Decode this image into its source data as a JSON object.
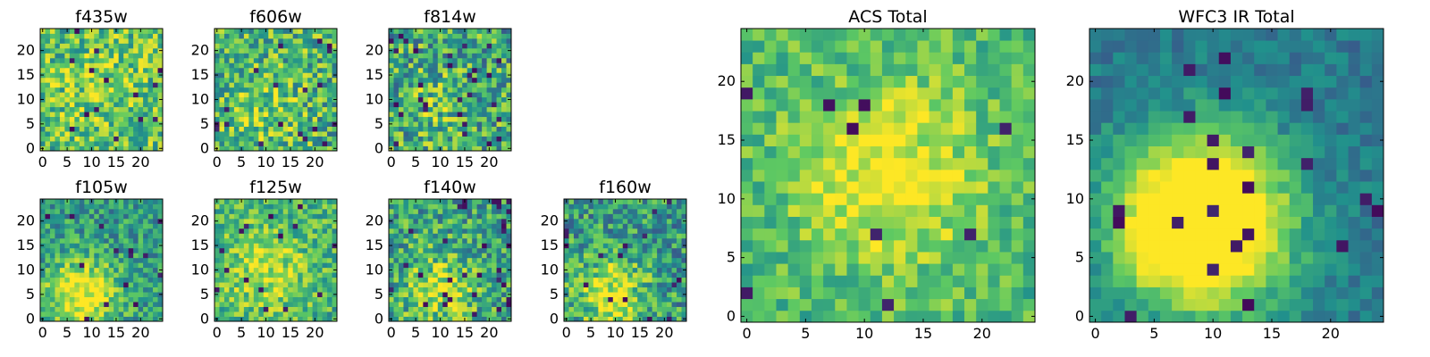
{
  "figure": {
    "colormap": [
      "#440154",
      "#3b528b",
      "#21918c",
      "#5ec962",
      "#fde725"
    ]
  },
  "chart_data": [
    {
      "type": "heatmap",
      "title": "f435w",
      "grid_size": [
        25,
        25
      ],
      "x_range": [
        0,
        24
      ],
      "y_range": [
        0,
        24
      ],
      "xticks": [
        0,
        5,
        10,
        15,
        20
      ],
      "yticks": [
        0,
        5,
        10,
        15,
        20
      ],
      "values": "25x25 noise field with a faint central brightening; values on a 0-1 colour scale",
      "xlabel": "",
      "ylabel": ""
    },
    {
      "type": "heatmap",
      "title": "f606w",
      "grid_size": [
        25,
        25
      ],
      "x_range": [
        0,
        24
      ],
      "y_range": [
        0,
        24
      ],
      "xticks": [
        0,
        5,
        10,
        15,
        20
      ],
      "yticks": [
        0,
        5,
        10,
        15,
        20
      ],
      "xlabel": "",
      "ylabel": ""
    },
    {
      "type": "heatmap",
      "title": "f814w",
      "grid_size": [
        25,
        25
      ],
      "x_range": [
        0,
        24
      ],
      "y_range": [
        0,
        24
      ],
      "xticks": [
        0,
        5,
        10,
        15,
        20
      ],
      "yticks": [
        0,
        5,
        10,
        15,
        20
      ],
      "xlabel": "",
      "ylabel": ""
    },
    {
      "type": "heatmap",
      "title": "f105w",
      "grid_size": [
        25,
        25
      ],
      "x_range": [
        0,
        24
      ],
      "y_range": [
        0,
        24
      ],
      "xticks": [
        0,
        5,
        10,
        15,
        20
      ],
      "yticks": [
        0,
        5,
        10,
        15,
        20
      ],
      "xlabel": "",
      "ylabel": ""
    },
    {
      "type": "heatmap",
      "title": "f125w",
      "grid_size": [
        25,
        25
      ],
      "x_range": [
        0,
        24
      ],
      "y_range": [
        0,
        24
      ],
      "xticks": [
        0,
        5,
        10,
        15,
        20
      ],
      "yticks": [
        0,
        5,
        10,
        15,
        20
      ],
      "xlabel": "",
      "ylabel": ""
    },
    {
      "type": "heatmap",
      "title": "f140w",
      "grid_size": [
        25,
        25
      ],
      "x_range": [
        0,
        24
      ],
      "y_range": [
        0,
        24
      ],
      "xticks": [
        0,
        5,
        10,
        15,
        20
      ],
      "yticks": [
        0,
        5,
        10,
        15,
        20
      ],
      "xlabel": "",
      "ylabel": ""
    },
    {
      "type": "heatmap",
      "title": "f160w",
      "grid_size": [
        25,
        25
      ],
      "x_range": [
        0,
        24
      ],
      "y_range": [
        0,
        24
      ],
      "xticks": [
        0,
        5,
        10,
        15,
        20
      ],
      "yticks": [
        0,
        5,
        10,
        15,
        20
      ],
      "xlabel": "",
      "ylabel": ""
    },
    {
      "type": "heatmap",
      "title": "ACS Total",
      "grid_size": [
        25,
        25
      ],
      "x_range": [
        0,
        24
      ],
      "y_range": [
        0,
        24
      ],
      "xticks": [
        0,
        5,
        10,
        15,
        20
      ],
      "yticks": [
        0,
        5,
        10,
        15,
        20
      ],
      "xlabel": "",
      "ylabel": ""
    },
    {
      "type": "heatmap",
      "title": "WFC3 IR Total",
      "grid_size": [
        25,
        25
      ],
      "x_range": [
        0,
        24
      ],
      "y_range": [
        0,
        24
      ],
      "xticks": [
        0,
        5,
        10,
        15,
        20
      ],
      "yticks": [
        0,
        5,
        10,
        15,
        20
      ],
      "xlabel": "",
      "ylabel": ""
    }
  ]
}
